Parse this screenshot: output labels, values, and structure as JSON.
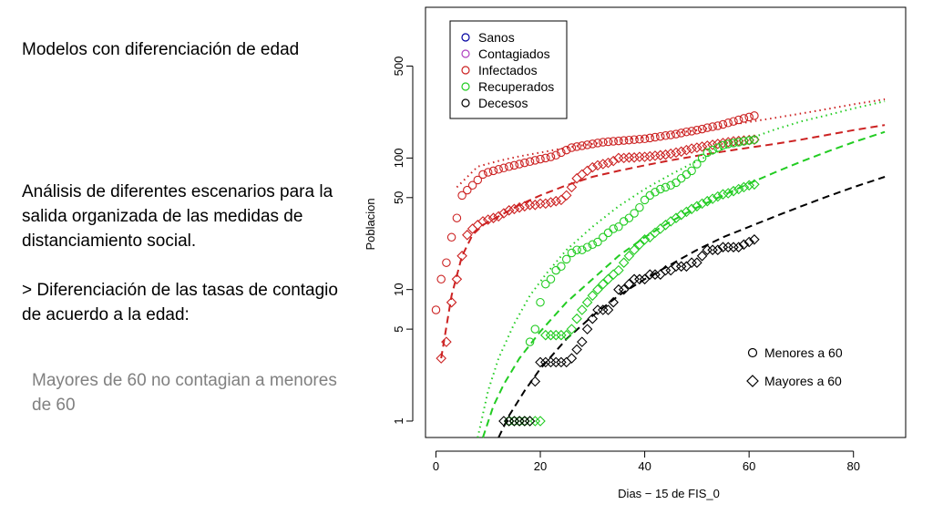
{
  "slide": {
    "title": "Modelos con diferenciación de edad",
    "body": [
      "Análisis de diferentes escenarios para la salida organizada de las medidas de distanciamiento social.",
      "> Diferenciación de las tasas de contagio de acuerdo a la edad:"
    ],
    "subtext": "Mayores de 60 no contagian a menores de 60"
  },
  "chart_data": {
    "type": "scatter",
    "xlabel": "Dias − 15 de FIS_0",
    "ylabel": "Poblacion",
    "y_scale": "log",
    "xlim": [
      -2,
      90
    ],
    "ylim": [
      0.75,
      1400
    ],
    "x_ticks": [
      0,
      20,
      40,
      60,
      80
    ],
    "y_ticks": [
      1,
      5,
      10,
      50,
      100,
      500
    ],
    "y_tick_labels": [
      "1",
      "5",
      "10",
      "50",
      "100",
      "500"
    ],
    "grid": false,
    "legend": {
      "placement": "top-left",
      "items": [
        {
          "label": "Sanos",
          "color": "#0000a0"
        },
        {
          "label": "Contagiados",
          "color": "#b040c0"
        },
        {
          "label": "Infectados",
          "color": "#cc2222"
        },
        {
          "label": "Recuperados",
          "color": "#22cc22"
        },
        {
          "label": "Decesos",
          "color": "#000000"
        }
      ]
    },
    "shape_legend": {
      "placement": "bottom-right",
      "items": [
        {
          "label": "Menores a 60",
          "marker": "circle"
        },
        {
          "label": "Mayores a 60",
          "marker": "diamond"
        }
      ]
    },
    "series": [
      {
        "group": "Infectados",
        "age": "Menores a 60",
        "marker": "circle",
        "color": "#cc2222",
        "x": [
          0,
          1,
          2,
          3,
          4,
          5,
          6,
          7,
          8,
          9,
          10,
          11,
          12,
          13,
          14,
          15,
          16,
          17,
          18,
          19,
          20,
          21,
          22,
          23,
          24,
          25,
          26,
          27,
          28,
          29,
          30,
          31,
          32,
          33,
          34,
          35,
          36,
          37,
          38,
          39,
          40,
          41,
          42,
          43,
          44,
          45,
          46,
          47,
          48,
          49,
          50,
          51,
          52,
          53,
          54,
          55,
          56,
          57,
          58,
          59,
          60,
          61
        ],
        "y": [
          7,
          12,
          16,
          25,
          35,
          52,
          57,
          62,
          68,
          75,
          78,
          80,
          82,
          84,
          86,
          88,
          90,
          92,
          94,
          96,
          98,
          100,
          102,
          105,
          110,
          115,
          120,
          122,
          124,
          126,
          128,
          130,
          132,
          133,
          134,
          135,
          136,
          137,
          138,
          139,
          140,
          142,
          144,
          146,
          148,
          150,
          152,
          155,
          158,
          160,
          163,
          166,
          170,
          173,
          176,
          180,
          185,
          190,
          195,
          200,
          205,
          210
        ]
      },
      {
        "group": "Infectados",
        "age": "Mayores a 60",
        "marker": "diamond",
        "color": "#cc2222",
        "x": [
          1,
          2,
          3,
          4,
          5,
          6,
          7,
          8,
          9,
          10,
          11,
          12,
          13,
          14,
          15,
          16,
          17,
          18,
          19,
          20,
          21,
          22,
          23,
          24,
          25,
          26,
          27,
          28,
          29,
          30,
          31,
          32,
          33,
          34,
          35,
          36,
          37,
          38,
          39,
          40,
          41,
          42,
          43,
          44,
          45,
          46,
          47,
          48,
          49,
          50,
          51,
          52,
          53,
          54,
          55,
          56,
          57,
          58,
          59,
          60,
          61
        ],
        "y": [
          3,
          4,
          8,
          12,
          18,
          26,
          29,
          31,
          33,
          34,
          35,
          36,
          38,
          40,
          41,
          42,
          43,
          44,
          44,
          45,
          45,
          46,
          47,
          48,
          52,
          60,
          70,
          75,
          80,
          85,
          88,
          90,
          92,
          95,
          100,
          100,
          101,
          101,
          102,
          102,
          103,
          104,
          105,
          106,
          108,
          110,
          112,
          115,
          118,
          120,
          122,
          124,
          126,
          128,
          130,
          132,
          134,
          135,
          136,
          137,
          138
        ]
      },
      {
        "group": "Recuperados",
        "age": "Menores a 60",
        "marker": "circle",
        "color": "#22cc22",
        "x": [
          14,
          15,
          16,
          17,
          18,
          19,
          20,
          21,
          22,
          23,
          24,
          25,
          26,
          27,
          28,
          29,
          30,
          31,
          32,
          33,
          34,
          35,
          36,
          37,
          38,
          39,
          40,
          41,
          42,
          43,
          44,
          45,
          46,
          47,
          48,
          49,
          50,
          51,
          52,
          53,
          54,
          55,
          56,
          57,
          58,
          59,
          60,
          61
        ],
        "y": [
          1,
          1,
          1,
          1,
          4,
          5,
          8,
          11,
          12,
          14,
          15,
          17,
          19,
          20,
          20,
          21,
          22,
          23,
          25,
          27,
          29,
          30,
          33,
          35,
          38,
          42,
          48,
          52,
          55,
          58,
          60,
          62,
          65,
          70,
          75,
          80,
          90,
          100,
          110,
          115,
          120,
          125,
          128,
          130,
          132,
          134,
          136,
          138
        ]
      },
      {
        "group": "Recuperados",
        "age": "Mayores a 60",
        "marker": "diamond",
        "color": "#22cc22",
        "x": [
          14,
          15,
          16,
          17,
          18,
          19,
          20,
          21,
          22,
          23,
          24,
          25,
          26,
          27,
          28,
          29,
          30,
          31,
          32,
          33,
          34,
          35,
          36,
          37,
          38,
          39,
          40,
          41,
          42,
          43,
          44,
          45,
          46,
          47,
          48,
          49,
          50,
          51,
          52,
          53,
          54,
          55,
          56,
          57,
          58,
          59,
          60,
          61
        ],
        "y": [
          1,
          1,
          1,
          1,
          1,
          1,
          1,
          4.5,
          4.5,
          4.5,
          4.5,
          4.5,
          5,
          6,
          7,
          8,
          9,
          10,
          11,
          12,
          13,
          14,
          16,
          18,
          20,
          22,
          24,
          25,
          27,
          29,
          31,
          33,
          35,
          37,
          39,
          41,
          43,
          45,
          47,
          49,
          51,
          53,
          54,
          56,
          58,
          60,
          62,
          63
        ]
      },
      {
        "group": "Decesos",
        "age": "Mayores a 60",
        "marker": "diamond",
        "color": "#000000",
        "x": [
          13,
          14,
          15,
          16,
          17,
          18,
          19,
          20,
          21,
          22,
          23,
          24,
          25,
          26,
          27,
          28,
          29,
          30,
          31,
          32,
          33,
          34,
          35,
          36,
          37,
          38,
          39,
          40,
          41,
          42,
          43,
          44,
          45,
          46,
          47,
          48,
          49,
          50,
          51,
          52,
          53,
          54,
          55,
          56,
          57,
          58,
          59,
          60,
          61
        ],
        "y": [
          1,
          1,
          1,
          1,
          1,
          1,
          2,
          2.8,
          2.8,
          2.8,
          2.8,
          2.8,
          2.8,
          3,
          3.5,
          4,
          5,
          6,
          7,
          7,
          7,
          8,
          10,
          10,
          11,
          12,
          12,
          12,
          13,
          13,
          13,
          14,
          14,
          15,
          15,
          15,
          16,
          16,
          18,
          20,
          20,
          20,
          21,
          21,
          21,
          21,
          22,
          23,
          24
        ]
      }
    ],
    "fits": [
      {
        "group": "Infectados",
        "age": "Menores a 60",
        "style": "dotted",
        "color": "#cc2222",
        "x": [
          4,
          8,
          12,
          16,
          20,
          25,
          30,
          35,
          40,
          45,
          50,
          55,
          60,
          65,
          70,
          75,
          80,
          86
        ],
        "y": [
          60,
          86,
          95,
          103,
          110,
          120,
          128,
          136,
          144,
          153,
          163,
          175,
          188,
          202,
          218,
          236,
          256,
          280
        ]
      },
      {
        "group": "Infectados",
        "age": "Mayores a 60",
        "style": "dashed",
        "color": "#cc2222",
        "x": [
          1,
          3,
          5,
          7,
          9,
          12,
          16,
          20,
          25,
          30,
          35,
          40,
          45,
          50,
          55,
          60,
          65,
          70,
          75,
          80,
          86
        ],
        "y": [
          3,
          9,
          18,
          26,
          31,
          36,
          44,
          52,
          62,
          72,
          80,
          88,
          96,
          104,
          112,
          120,
          128,
          138,
          150,
          163,
          178
        ]
      },
      {
        "group": "Recuperados",
        "age": "Menores a 60",
        "style": "dotted",
        "color": "#22cc22",
        "x": [
          8,
          10,
          12,
          15,
          18,
          21,
          25,
          30,
          35,
          40,
          45,
          50,
          55,
          60,
          65,
          70,
          75,
          80,
          86
        ],
        "y": [
          0.75,
          1.7,
          3,
          5.5,
          9,
          13,
          20,
          30,
          43,
          58,
          75,
          95,
          117,
          140,
          165,
          190,
          212,
          238,
          270
        ]
      },
      {
        "group": "Recuperados",
        "age": "Mayores a 60",
        "style": "dashed",
        "color": "#22cc22",
        "x": [
          9,
          11,
          13,
          16,
          20,
          25,
          30,
          35,
          40,
          45,
          50,
          55,
          60,
          65,
          70,
          75,
          80,
          86
        ],
        "y": [
          0.75,
          1.3,
          1.9,
          3,
          4.8,
          8,
          12,
          18,
          25,
          33,
          42,
          52,
          64,
          78,
          94,
          112,
          132,
          158
        ]
      },
      {
        "group": "Decesos",
        "age": "Mayores a 60",
        "style": "dashed",
        "color": "#000000",
        "x": [
          12,
          14,
          17,
          20,
          25,
          30,
          35,
          40,
          45,
          50,
          55,
          60,
          65,
          70,
          75,
          80,
          86
        ],
        "y": [
          0.75,
          1.1,
          1.7,
          2.5,
          4.2,
          6.3,
          9,
          12,
          15.5,
          20,
          25,
          30,
          36,
          43,
          51,
          60,
          72
        ]
      }
    ]
  }
}
